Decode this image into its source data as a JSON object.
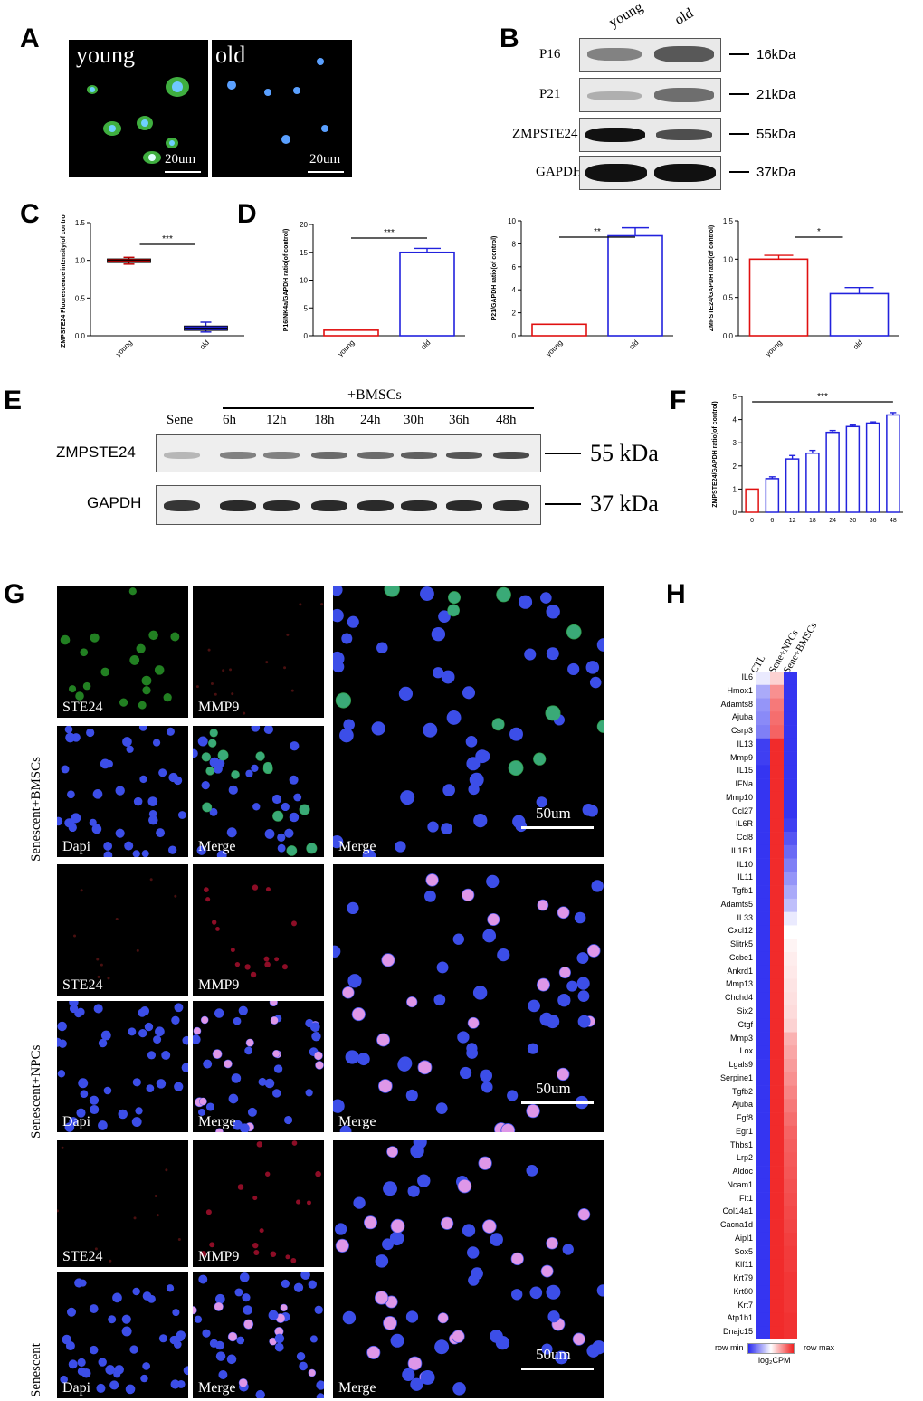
{
  "panels": {
    "A": "A",
    "B": "B",
    "C": "C",
    "D": "D",
    "E": "E",
    "F": "F",
    "G": "G",
    "H": "H"
  },
  "panelA": {
    "label_left": "young",
    "label_right": "old",
    "scale_left": "20um",
    "scale_right": "20um"
  },
  "panelB": {
    "columns": [
      "young",
      "old"
    ],
    "rows": [
      {
        "name": "P16",
        "kda": "16kDa"
      },
      {
        "name": "P21",
        "kda": "21kDa"
      },
      {
        "name": "ZMPSTE24",
        "kda": "55kDa"
      },
      {
        "name": "GAPDH",
        "kda": "37kDa"
      }
    ]
  },
  "panelE": {
    "group_label": "+BMSCs",
    "lanes": [
      "Sene",
      "6h",
      "12h",
      "18h",
      "24h",
      "30h",
      "36h",
      "48h"
    ],
    "rows": [
      {
        "name": "ZMPSTE24",
        "kda": "55 kDa"
      },
      {
        "name": "GAPDH",
        "kda": "37 kDa"
      }
    ]
  },
  "panelG": {
    "row_groups": [
      "Senescent+BMSCs",
      "Senescent+NPCs",
      "Senescent"
    ],
    "labels": {
      "ste24": "STE24",
      "mmp9": "MMP9",
      "dapi": "Dapi",
      "merge": "Merge"
    },
    "scale": "50um"
  },
  "chart_data": [
    {
      "id": "C",
      "type": "box",
      "categories": [
        "young",
        "old"
      ],
      "ylabel": "ZMPSTE24 Fluorescence intensity(of control)",
      "ylim": [
        0,
        1.5
      ],
      "yticks": [
        "0.0",
        "0.5",
        "1.0",
        "1.5"
      ],
      "values": [
        1.0,
        0.1
      ],
      "whiskers": [
        [
          0.95,
          1.04
        ],
        [
          0.05,
          0.18
        ]
      ],
      "boxes": [
        [
          0.97,
          1.02
        ],
        [
          0.07,
          0.13
        ]
      ],
      "significance": "***",
      "colors": [
        "#c00000",
        "#2222cc"
      ]
    },
    {
      "id": "D1",
      "type": "bar",
      "categories": [
        "young",
        "old"
      ],
      "ylabel": "P16INK4a/GAPDH ratio(of control)",
      "ylim": [
        0,
        20
      ],
      "yticks": [
        "0",
        "5",
        "10",
        "15",
        "20"
      ],
      "values": [
        1.0,
        15.0
      ],
      "errors": [
        0,
        0.7
      ],
      "significance": "***",
      "colors": [
        "#e01010",
        "#2222dd"
      ]
    },
    {
      "id": "D2",
      "type": "bar",
      "categories": [
        "young",
        "old"
      ],
      "ylabel": "P21/GAPDH ratio(of control)",
      "ylim": [
        0,
        10
      ],
      "yticks": [
        "0",
        "2",
        "4",
        "6",
        "8",
        "10"
      ],
      "values": [
        1.0,
        8.7
      ],
      "errors": [
        0,
        0.7
      ],
      "significance": "**",
      "colors": [
        "#e01010",
        "#2222dd"
      ]
    },
    {
      "id": "D3",
      "type": "bar",
      "categories": [
        "young",
        "old"
      ],
      "ylabel": "ZMPSTE24/GAPDH ratio(of control)",
      "ylim": [
        0,
        1.5
      ],
      "yticks": [
        "0.0",
        "0.5",
        "1.0",
        "1.5"
      ],
      "values": [
        1.0,
        0.55
      ],
      "errors": [
        0.05,
        0.08
      ],
      "significance": "*",
      "colors": [
        "#e01010",
        "#2222dd"
      ]
    },
    {
      "id": "F",
      "type": "bar",
      "categories": [
        "0",
        "6",
        "12",
        "18",
        "24",
        "30",
        "36",
        "48"
      ],
      "ylabel": "ZMPSTE24/GAPDH ratio(of control)",
      "ylim": [
        0,
        5
      ],
      "yticks": [
        "0",
        "1",
        "2",
        "3",
        "4",
        "5"
      ],
      "values": [
        1.0,
        1.45,
        2.3,
        2.55,
        3.45,
        3.7,
        3.85,
        4.2
      ],
      "errors": [
        0,
        0.08,
        0.15,
        0.12,
        0.08,
        0.06,
        0.05,
        0.1
      ],
      "significance": "***",
      "colors": [
        "#e01010",
        "#2222dd"
      ]
    },
    {
      "id": "H",
      "type": "heatmap",
      "columns": [
        "CTL",
        "Sene+NPCs",
        "Sene+BMSCs"
      ],
      "rows": [
        "IL6",
        "Hmox1",
        "Adamts8",
        "Ajuba",
        "Csrp3",
        "IL13",
        "Mmp9",
        "IL15",
        "IFNa",
        "Mmp10",
        "Ccl27",
        "IL6R",
        "Ccl8",
        "IL1R1",
        "IL10",
        "IL11",
        "Tgfb1",
        "Adamts5",
        "IL33",
        "Cxcl12",
        "Slitrk5",
        "Ccbe1",
        "Ankrd1",
        "Mmp13",
        "Chchd4",
        "Six2",
        "Ctgf",
        "Mmp3",
        "Lox",
        "Lgals9",
        "Serpine1",
        "Tgfb2",
        "Ajuba",
        "Fgf8",
        "Egr1",
        "Thbs1",
        "Lrp2",
        "Aldoc",
        "Ncam1",
        "Flt1",
        "Col14a1",
        "Cacna1d",
        "Aipl1",
        "Sox5",
        "Klf11",
        "Krt79",
        "Krt80",
        "Krt7",
        "Atp1b1",
        "Dnajc15"
      ],
      "ctl": [
        -0.1,
        -0.4,
        -0.5,
        -0.55,
        -0.6,
        -0.9,
        -0.9,
        -0.95,
        -0.95,
        -0.95,
        -0.95,
        -0.95,
        -0.95,
        -0.95,
        -0.95,
        -0.95,
        -0.95,
        -0.95,
        -0.95,
        -0.95,
        -0.95,
        -0.95,
        -0.95,
        -0.95,
        -0.95,
        -0.95,
        -0.95,
        -0.95,
        -0.95,
        -0.95,
        -0.95,
        -0.95,
        -0.95,
        -0.95,
        -0.95,
        -0.95,
        -0.95,
        -0.95,
        -0.95,
        -0.95,
        -0.95,
        -0.95,
        -0.95,
        -0.95,
        -0.95,
        -0.95,
        -0.95,
        -0.95,
        -0.95,
        -0.95
      ],
      "npcs": [
        0.2,
        0.5,
        0.6,
        0.65,
        0.7,
        0.95,
        0.95,
        0.95,
        0.95,
        0.95,
        0.95,
        0.95,
        0.95,
        0.95,
        0.95,
        0.95,
        0.95,
        0.95,
        0.95,
        0.95,
        0.95,
        0.95,
        0.95,
        0.95,
        0.95,
        0.95,
        0.95,
        0.95,
        0.95,
        0.95,
        0.95,
        0.95,
        0.95,
        0.95,
        0.95,
        0.95,
        0.95,
        0.95,
        0.95,
        0.95,
        0.95,
        0.95,
        0.95,
        0.95,
        0.95,
        0.95,
        0.95,
        0.95,
        0.95,
        0.95
      ],
      "bmscs": [
        -0.95,
        -0.95,
        -0.95,
        -0.95,
        -0.95,
        -0.95,
        -0.95,
        -0.95,
        -0.95,
        -0.95,
        -0.95,
        -0.9,
        -0.8,
        -0.7,
        -0.6,
        -0.5,
        -0.4,
        -0.3,
        -0.1,
        0.0,
        0.05,
        0.08,
        0.1,
        0.12,
        0.14,
        0.16,
        0.2,
        0.35,
        0.4,
        0.45,
        0.5,
        0.55,
        0.6,
        0.65,
        0.7,
        0.72,
        0.74,
        0.76,
        0.78,
        0.8,
        0.82,
        0.84,
        0.86,
        0.88,
        0.88,
        0.9,
        0.9,
        0.9,
        0.92,
        0.92
      ],
      "legend_min": "row min",
      "legend_max": "row max",
      "legend_unit": "log₂CPM"
    }
  ],
  "colors": {
    "red": "#e01010",
    "blue": "#2222dd",
    "green": "#46d04a",
    "nucleus": "#3a55e6",
    "mmp9": "#e8304a"
  }
}
